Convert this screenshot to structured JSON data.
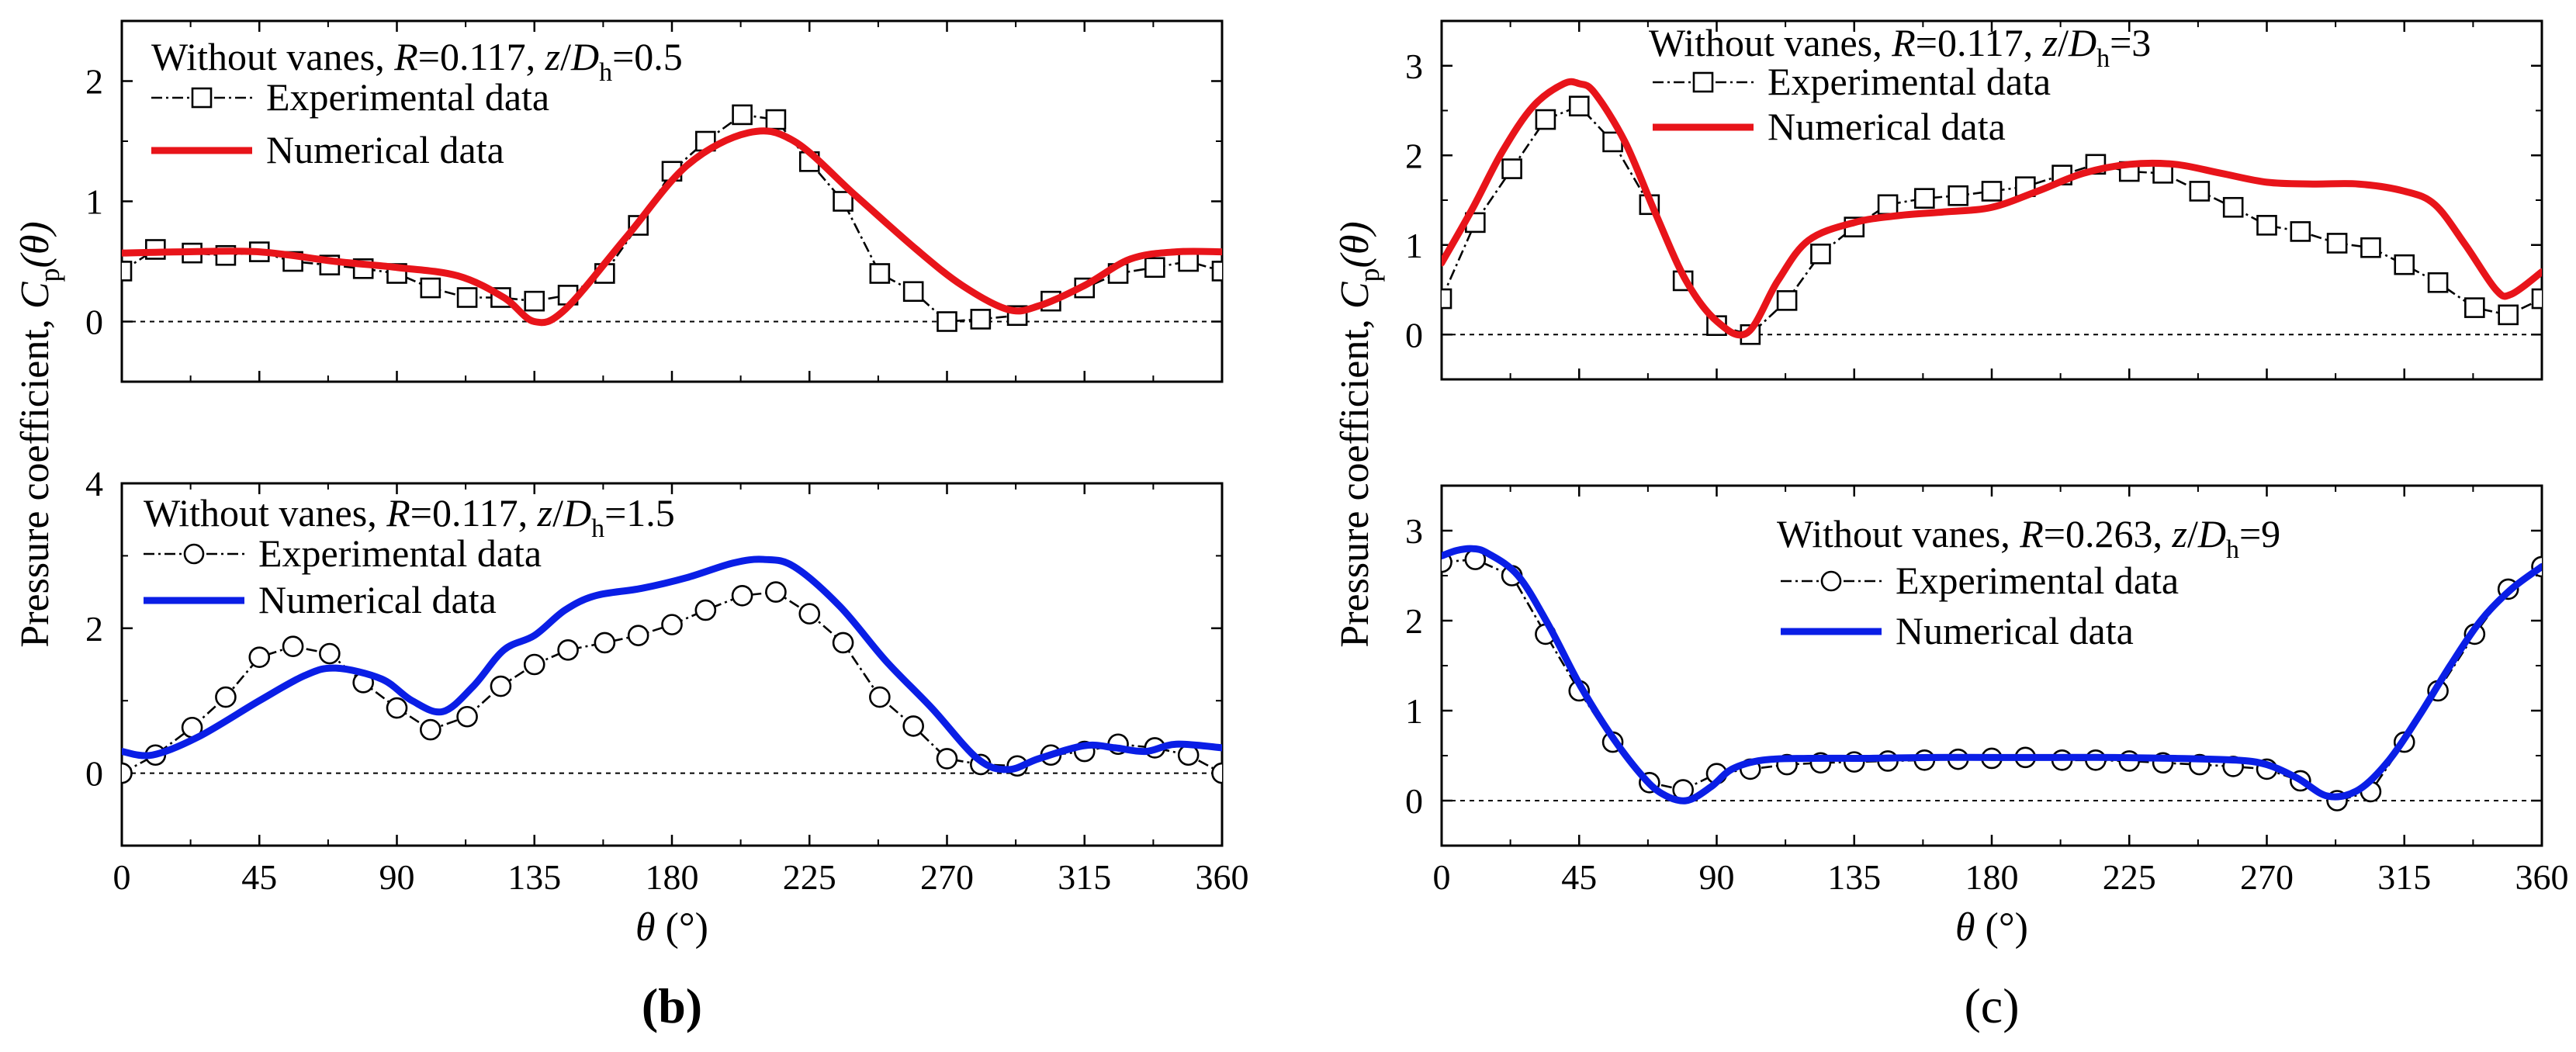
{
  "figure": {
    "panel_labels": [
      "(b)",
      "(c)"
    ],
    "ylabel_main": "Pressure coefficient, ",
    "ylabel_symbol": "C",
    "ylabel_sub": "p",
    "ylabel_arg": "(θ)",
    "xlabel_symbol": "θ",
    "xlabel_unit": " (°)",
    "colors": {
      "experimental": "#000000",
      "numerical_red": "#e8141a",
      "numerical_blue": "#0a1ee6",
      "zero_line": "#000000"
    }
  },
  "chart_data": [
    {
      "id": "b-top",
      "type": "line",
      "title_parts": [
        "Without vanes, ",
        "R",
        "=0.117, ",
        "z",
        "/",
        "D",
        "h",
        "=0.5"
      ],
      "xlabel": "",
      "ylabel": "",
      "xlim": [
        0,
        360
      ],
      "ylim": [
        -0.5,
        2.5
      ],
      "xticks": [
        0,
        45,
        90,
        135,
        180,
        225,
        270,
        315,
        360
      ],
      "yticks": [
        0,
        1,
        2
      ],
      "show_xticklabels": false,
      "zero_line": true,
      "series": [
        {
          "name": "Experimental data",
          "kind": "experimental",
          "marker": "square",
          "x": [
            0,
            11,
            23,
            34,
            45,
            56,
            68,
            79,
            90,
            101,
            113,
            124,
            135,
            146,
            158,
            169,
            180,
            191,
            203,
            214,
            225,
            236,
            248,
            259,
            270,
            281,
            293,
            304,
            315,
            326,
            338,
            349,
            360
          ],
          "y": [
            0.42,
            0.6,
            0.57,
            0.55,
            0.58,
            0.5,
            0.47,
            0.44,
            0.4,
            0.28,
            0.2,
            0.2,
            0.17,
            0.22,
            0.4,
            0.8,
            1.25,
            1.5,
            1.72,
            1.68,
            1.33,
            1.0,
            0.4,
            0.25,
            0.0,
            0.02,
            0.05,
            0.17,
            0.28,
            0.4,
            0.45,
            0.5,
            0.42
          ]
        },
        {
          "name": "Numerical data",
          "kind": "numerical",
          "color": "red",
          "x": [
            0,
            20,
            45,
            70,
            90,
            110,
            125,
            135,
            145,
            165,
            185,
            205,
            220,
            240,
            260,
            275,
            290,
            300,
            315,
            330,
            345,
            360
          ],
          "y": [
            0.57,
            0.58,
            0.58,
            0.5,
            0.45,
            0.38,
            0.2,
            0.0,
            0.1,
            0.7,
            1.3,
            1.57,
            1.5,
            1.05,
            0.6,
            0.3,
            0.1,
            0.13,
            0.3,
            0.52,
            0.58,
            0.58
          ]
        }
      ]
    },
    {
      "id": "b-bottom",
      "type": "line",
      "title_parts": [
        "Without vanes, ",
        "R",
        "=0.117, ",
        "z",
        "/",
        "D",
        "h",
        "=1.5"
      ],
      "xlabel": "θ (°)",
      "ylabel": "",
      "xlim": [
        0,
        360
      ],
      "ylim": [
        -1,
        4
      ],
      "xticks": [
        0,
        45,
        90,
        135,
        180,
        225,
        270,
        315,
        360
      ],
      "yticks": [
        0,
        2,
        4
      ],
      "show_xticklabels": true,
      "zero_line": true,
      "series": [
        {
          "name": "Experimental data",
          "kind": "experimental",
          "marker": "circle",
          "x": [
            0,
            11,
            23,
            34,
            45,
            56,
            68,
            79,
            90,
            101,
            113,
            124,
            135,
            146,
            158,
            169,
            180,
            191,
            203,
            214,
            225,
            236,
            248,
            259,
            270,
            281,
            293,
            304,
            315,
            326,
            338,
            349,
            360
          ],
          "y": [
            0.0,
            0.25,
            0.63,
            1.05,
            1.6,
            1.75,
            1.65,
            1.25,
            0.9,
            0.6,
            0.78,
            1.2,
            1.5,
            1.7,
            1.8,
            1.9,
            2.05,
            2.25,
            2.45,
            2.5,
            2.2,
            1.8,
            1.05,
            0.65,
            0.2,
            0.12,
            0.1,
            0.25,
            0.3,
            0.4,
            0.35,
            0.25,
            0.0
          ]
        },
        {
          "name": "Numerical data",
          "kind": "numerical",
          "color": "blue",
          "x": [
            0,
            10,
            25,
            45,
            60,
            70,
            85,
            95,
            105,
            115,
            125,
            135,
            145,
            155,
            170,
            185,
            200,
            210,
            220,
            235,
            250,
            265,
            280,
            290,
            300,
            315,
            325,
            335,
            345,
            360
          ],
          "y": [
            0.3,
            0.25,
            0.5,
            1.0,
            1.35,
            1.45,
            1.3,
            1.0,
            0.85,
            1.2,
            1.7,
            1.9,
            2.25,
            2.45,
            2.55,
            2.7,
            2.9,
            2.95,
            2.85,
            2.3,
            1.55,
            0.9,
            0.2,
            0.05,
            0.2,
            0.38,
            0.35,
            0.3,
            0.4,
            0.35
          ]
        }
      ]
    },
    {
      "id": "c-top",
      "type": "line",
      "title_parts": [
        "Without vanes, ",
        "R",
        "=0.117, ",
        "z",
        "/",
        "D",
        "h",
        "=3"
      ],
      "xlabel": "",
      "ylabel": "",
      "xlim": [
        0,
        360
      ],
      "ylim": [
        -0.5,
        3.5
      ],
      "xticks": [
        0,
        45,
        90,
        135,
        180,
        225,
        270,
        315,
        360
      ],
      "yticks": [
        0,
        1,
        2,
        3
      ],
      "show_xticklabels": false,
      "zero_line": true,
      "series": [
        {
          "name": "Experimental data",
          "kind": "experimental",
          "marker": "square",
          "x": [
            0,
            11,
            23,
            34,
            45,
            56,
            68,
            79,
            90,
            101,
            113,
            124,
            135,
            146,
            158,
            169,
            180,
            191,
            203,
            214,
            225,
            236,
            248,
            259,
            270,
            281,
            293,
            304,
            315,
            326,
            338,
            349,
            360
          ],
          "y": [
            0.4,
            1.25,
            1.85,
            2.4,
            2.55,
            2.15,
            1.45,
            0.6,
            0.1,
            0.0,
            0.38,
            0.9,
            1.2,
            1.45,
            1.52,
            1.55,
            1.6,
            1.65,
            1.78,
            1.9,
            1.82,
            1.8,
            1.6,
            1.42,
            1.22,
            1.15,
            1.02,
            0.97,
            0.78,
            0.58,
            0.3,
            0.22,
            0.4
          ]
        },
        {
          "name": "Numerical data",
          "kind": "numerical",
          "color": "red",
          "x": [
            0,
            10,
            20,
            30,
            40,
            45,
            50,
            60,
            70,
            80,
            90,
            100,
            110,
            120,
            135,
            150,
            165,
            180,
            195,
            210,
            225,
            240,
            255,
            270,
            285,
            300,
            315,
            325,
            335,
            345,
            350,
            360
          ],
          "y": [
            0.8,
            1.4,
            2.05,
            2.55,
            2.8,
            2.8,
            2.7,
            2.15,
            1.35,
            0.6,
            0.15,
            0.02,
            0.6,
            1.05,
            1.25,
            1.33,
            1.37,
            1.42,
            1.6,
            1.8,
            1.9,
            1.9,
            1.8,
            1.7,
            1.68,
            1.68,
            1.6,
            1.45,
            1.0,
            0.5,
            0.45,
            0.7
          ]
        }
      ]
    },
    {
      "id": "c-bottom",
      "type": "line",
      "title_parts": [
        "Without vanes, ",
        "R",
        "=0.263, ",
        "z",
        "/",
        "D",
        "h",
        "=9"
      ],
      "xlabel": "θ (°)",
      "ylabel": "",
      "xlim": [
        0,
        360
      ],
      "ylim": [
        -0.5,
        3.5
      ],
      "xticks": [
        0,
        45,
        90,
        135,
        180,
        225,
        270,
        315,
        360
      ],
      "yticks": [
        0,
        1,
        2,
        3
      ],
      "show_xticklabels": true,
      "zero_line": true,
      "series": [
        {
          "name": "Experimental data",
          "kind": "experimental",
          "marker": "circle",
          "x": [
            0,
            11,
            23,
            34,
            45,
            56,
            68,
            79,
            90,
            101,
            113,
            124,
            135,
            146,
            158,
            169,
            180,
            191,
            203,
            214,
            225,
            236,
            248,
            259,
            270,
            281,
            293,
            304,
            315,
            326,
            338,
            349,
            360
          ],
          "y": [
            2.65,
            2.68,
            2.5,
            1.85,
            1.22,
            0.65,
            0.2,
            0.12,
            0.3,
            0.35,
            0.4,
            0.42,
            0.43,
            0.44,
            0.45,
            0.46,
            0.47,
            0.48,
            0.45,
            0.45,
            0.44,
            0.42,
            0.4,
            0.38,
            0.35,
            0.22,
            0.0,
            0.1,
            0.65,
            1.22,
            1.85,
            2.35,
            2.6
          ]
        },
        {
          "name": "Numerical data",
          "kind": "numerical",
          "color": "blue",
          "x": [
            0,
            5,
            10,
            15,
            25,
            35,
            45,
            55,
            65,
            72,
            80,
            88,
            95,
            105,
            120,
            140,
            160,
            180,
            200,
            220,
            240,
            260,
            270,
            280,
            290,
            300,
            310,
            320,
            330,
            340,
            350,
            360
          ],
          "y": [
            2.72,
            2.78,
            2.8,
            2.75,
            2.5,
            1.95,
            1.3,
            0.75,
            0.3,
            0.08,
            0.0,
            0.15,
            0.35,
            0.45,
            0.47,
            0.47,
            0.48,
            0.48,
            0.48,
            0.48,
            0.47,
            0.45,
            0.4,
            0.25,
            0.05,
            0.12,
            0.45,
            0.95,
            1.5,
            2.0,
            2.35,
            2.6
          ]
        }
      ]
    }
  ]
}
